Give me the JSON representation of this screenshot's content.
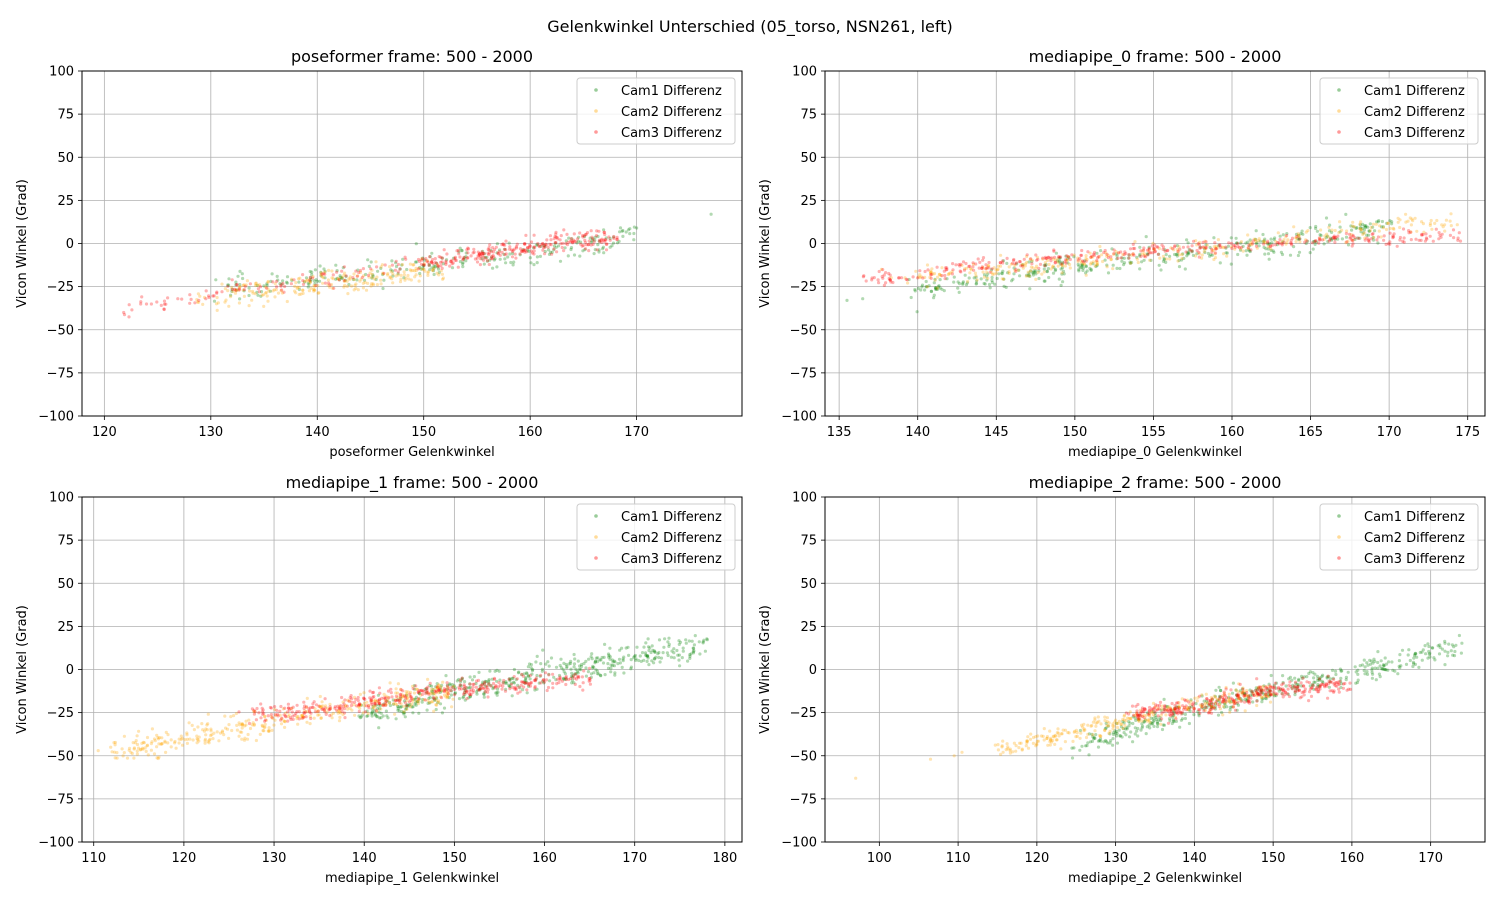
{
  "figure": {
    "suptitle": "Gelenkwinkel Unterschied (05_torso, NSN261, left)"
  },
  "series_styles": [
    {
      "name": "Cam1 Differenz",
      "color": "#008000"
    },
    {
      "name": "Cam2 Differenz",
      "color": "#ffa500"
    },
    {
      "name": "Cam3 Differenz",
      "color": "#ff0000"
    }
  ],
  "chart_data": [
    {
      "type": "scatter",
      "title": "poseformer frame: 500 - 2000",
      "xlabel": "poseformer Gelenkwinkel",
      "ylabel": "Vicon Winkel (Grad)",
      "xlim": [
        117.9,
        179.9
      ],
      "ylim": [
        -100,
        100
      ],
      "xticks": [
        120,
        130,
        140,
        150,
        160,
        170
      ],
      "yticks": [
        -100,
        -75,
        -50,
        -25,
        0,
        25,
        50,
        75,
        100
      ],
      "grid": true,
      "legend": "top-right",
      "series": [
        {
          "name": "Cam1 Differenz",
          "color": "#008000",
          "segments": [
            [
              [
                131,
                -25
              ],
              [
                145,
                -17
              ],
              [
                155,
                -9
              ],
              [
                165,
                -2
              ],
              [
                170,
                6
              ]
            ]
          ],
          "spread": 3.5,
          "count": 260,
          "outliers": [
            [
              177,
              17
            ],
            [
              170,
              9
            ]
          ]
        },
        {
          "name": "Cam2 Differenz",
          "color": "#ffa500",
          "segments": [
            [
              [
                128,
                -33
              ],
              [
                138,
                -28
              ],
              [
                146,
                -21
              ],
              [
                152,
                -15
              ]
            ],
            [
              [
                132,
                -27
              ],
              [
                142,
                -21
              ],
              [
                150,
                -15
              ]
            ]
          ],
          "spread": 3,
          "count": 220
        },
        {
          "name": "Cam3 Differenz",
          "color": "#ff0000",
          "segments": [
            [
              [
                121,
                -40
              ],
              [
                132,
                -27
              ],
              [
                145,
                -16
              ],
              [
                155,
                -6
              ],
              [
                163,
                3
              ],
              [
                167,
                7
              ]
            ],
            [
              [
                150,
                -11
              ],
              [
                160,
                -3
              ],
              [
                168,
                3
              ]
            ]
          ],
          "spread": 2.5,
          "count": 360
        }
      ]
    },
    {
      "type": "scatter",
      "title": "mediapipe_0 frame: 500 - 2000",
      "xlabel": "mediapipe_0 Gelenkwinkel",
      "ylabel": "Vicon Winkel (Grad)",
      "xlim": [
        134.1,
        176.1
      ],
      "ylim": [
        -100,
        100
      ],
      "xticks": [
        135,
        140,
        145,
        150,
        155,
        160,
        165,
        170,
        175
      ],
      "yticks": [
        -100,
        -75,
        -50,
        -25,
        0,
        25,
        50,
        75,
        100
      ],
      "grid": true,
      "legend": "top-right",
      "series": [
        {
          "name": "Cam1 Differenz",
          "color": "#008000",
          "segments": [
            [
              [
                140,
                -27
              ],
              [
                145,
                -20
              ],
              [
                150,
                -14
              ],
              [
                155,
                -8
              ],
              [
                160,
                -3
              ],
              [
                165,
                3
              ],
              [
                170,
                10
              ]
            ]
          ],
          "spread": 3.5,
          "count": 380,
          "outliers": [
            [
              135.5,
              -33
            ],
            [
              136.5,
              -32
            ]
          ]
        },
        {
          "name": "Cam2 Differenz",
          "color": "#ffa500",
          "segments": [
            [
              [
                139,
                -20
              ],
              [
                145,
                -15
              ],
              [
                150,
                -11
              ],
              [
                155,
                -6
              ],
              [
                160,
                -2
              ],
              [
                165,
                4
              ],
              [
                174,
                15
              ]
            ]
          ],
          "spread": 3,
          "count": 320
        },
        {
          "name": "Cam3 Differenz",
          "color": "#ff0000",
          "segments": [
            [
              [
                137,
                -22
              ],
              [
                143,
                -14
              ],
              [
                150,
                -8
              ],
              [
                155,
                -4
              ],
              [
                160,
                -1
              ],
              [
                165,
                1
              ],
              [
                174,
                5
              ]
            ]
          ],
          "spread": 2,
          "count": 360
        }
      ]
    },
    {
      "type": "scatter",
      "title": "mediapipe_1 frame: 500 - 2000",
      "xlabel": "mediapipe_1 Gelenkwinkel",
      "ylabel": "Vicon Winkel (Grad)",
      "xlim": [
        108.7,
        181.9
      ],
      "ylim": [
        -100,
        100
      ],
      "xticks": [
        110,
        120,
        130,
        140,
        150,
        160,
        170,
        180
      ],
      "yticks": [
        -100,
        -75,
        -50,
        -25,
        0,
        25,
        50,
        75,
        100
      ],
      "grid": true,
      "legend": "top-right",
      "series": [
        {
          "name": "Cam1 Differenz",
          "color": "#008000",
          "segments": [
            [
              [
                140,
                -27
              ],
              [
                150,
                -12
              ],
              [
                160,
                -2
              ],
              [
                170,
                7
              ],
              [
                178,
                15
              ]
            ]
          ],
          "spread": 4,
          "count": 460
        },
        {
          "name": "Cam2 Differenz",
          "color": "#ffa500",
          "segments": [
            [
              [
                112,
                -48
              ],
              [
                120,
                -40
              ],
              [
                130,
                -30
              ],
              [
                140,
                -20
              ],
              [
                150,
                -13
              ]
            ]
          ],
          "spread": 3.5,
          "count": 380
        },
        {
          "name": "Cam3 Differenz",
          "color": "#ff0000",
          "segments": [
            [
              [
                127,
                -27
              ],
              [
                135,
                -23
              ],
              [
                145,
                -15
              ],
              [
                155,
                -9
              ],
              [
                165,
                -5
              ]
            ]
          ],
          "spread": 2.5,
          "count": 380
        }
      ]
    },
    {
      "type": "scatter",
      "title": "mediapipe_2 frame: 500 - 2000",
      "xlabel": "mediapipe_2 Gelenkwinkel",
      "ylabel": "Vicon Winkel (Grad)",
      "xlim": [
        93.1,
        176.9
      ],
      "ylim": [
        -100,
        100
      ],
      "xticks": [
        100,
        110,
        120,
        130,
        140,
        150,
        160,
        170
      ],
      "yticks": [
        -100,
        -75,
        -50,
        -25,
        0,
        25,
        50,
        75,
        100
      ],
      "grid": true,
      "legend": "top-right",
      "series": [
        {
          "name": "Cam1 Differenz",
          "color": "#008000",
          "segments": [
            [
              [
                125,
                -45
              ],
              [
                135,
                -30
              ],
              [
                145,
                -17
              ],
              [
                155,
                -7
              ],
              [
                165,
                3
              ],
              [
                174,
                14
              ]
            ]
          ],
          "spread": 3.5,
          "count": 440
        },
        {
          "name": "Cam2 Differenz",
          "color": "#ffa500",
          "segments": [
            [
              [
                115,
                -47
              ],
              [
                125,
                -36
              ],
              [
                132,
                -28
              ],
              [
                140,
                -22
              ],
              [
                150,
                -12
              ]
            ]
          ],
          "spread": 3,
          "count": 280,
          "outliers": [
            [
              97,
              -63
            ],
            [
              106.5,
              -52
            ],
            [
              110.5,
              -48
            ],
            [
              109.5,
              -50
            ]
          ]
        },
        {
          "name": "Cam3 Differenz",
          "color": "#ff0000",
          "segments": [
            [
              [
                132,
                -25
              ],
              [
                140,
                -22
              ],
              [
                150,
                -12
              ],
              [
                160,
                -9
              ]
            ]
          ],
          "spread": 2.5,
          "count": 320
        }
      ]
    }
  ]
}
